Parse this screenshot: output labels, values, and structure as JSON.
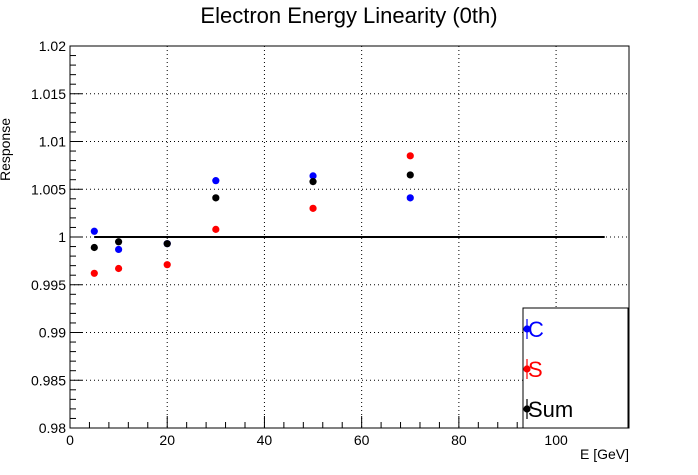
{
  "chart_data": {
    "type": "scatter",
    "title": "Electron Energy Linearity (0th)",
    "xlabel": "E [GeV]",
    "ylabel": "Response",
    "xlim": [
      0,
      115
    ],
    "ylim": [
      0.98,
      1.02
    ],
    "x_ticks": [
      0,
      20,
      40,
      60,
      80,
      100
    ],
    "y_ticks": [
      0.98,
      0.985,
      0.99,
      0.995,
      1,
      1.005,
      1.01,
      1.015,
      1.02
    ],
    "grid": true,
    "legend_position": "bottom-right",
    "reference_line": {
      "y": 1,
      "x_range": [
        5,
        110
      ],
      "color": "#000000"
    },
    "series": [
      {
        "name": "C",
        "color": "#0000ff",
        "x": [
          5,
          10,
          20,
          30,
          50,
          70
        ],
        "y": [
          1.0006,
          0.9987,
          0.9993,
          1.0059,
          1.0064,
          1.0041
        ]
      },
      {
        "name": "S",
        "color": "#ff0000",
        "x": [
          5,
          10,
          20,
          30,
          50,
          70
        ],
        "y": [
          0.9962,
          0.9967,
          0.9971,
          1.0008,
          1.003,
          1.0085
        ]
      },
      {
        "name": "Sum",
        "color": "#000000",
        "x": [
          5,
          10,
          20,
          30,
          50,
          70
        ],
        "y": [
          0.9989,
          0.9995,
          0.9993,
          1.0041,
          1.0058,
          1.0065
        ]
      }
    ]
  }
}
